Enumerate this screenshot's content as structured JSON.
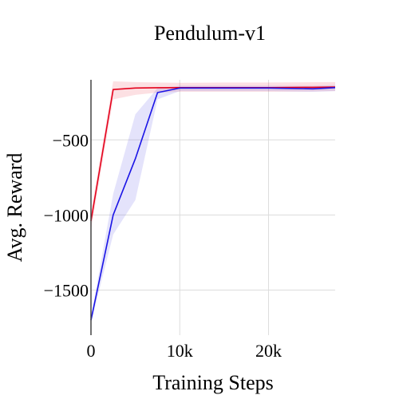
{
  "chart_data": {
    "type": "line",
    "title": "Pendulum-v1",
    "xlabel": "Training Steps",
    "ylabel": "Avg. Reward",
    "xlim": [
      0,
      27500
    ],
    "ylim": [
      -1800,
      -100
    ],
    "x_ticks": [
      0,
      10000,
      20000
    ],
    "x_tick_labels": [
      "0",
      "10k",
      "20k"
    ],
    "y_ticks": [
      -500,
      -1000,
      -1500
    ],
    "y_tick_labels": [
      "−500",
      "−1000",
      "−1500"
    ],
    "grid": true,
    "series": [
      {
        "color": "#e4001b",
        "band_color": "rgba(228,0,27,0.12)",
        "x": [
          0,
          2500,
          5000,
          7500,
          10000,
          15000,
          20000,
          25000,
          27500
        ],
        "y": [
          -1040,
          -165,
          -155,
          -153,
          -152,
          -152,
          -152,
          -150,
          -148
        ],
        "upper": [
          -980,
          -110,
          -115,
          -118,
          -120,
          -118,
          -118,
          -116,
          -115
        ],
        "lower": [
          -1100,
          -230,
          -200,
          -185,
          -180,
          -180,
          -180,
          -178,
          -175
        ]
      },
      {
        "color": "#1a14e6",
        "band_color": "rgba(90,80,230,0.16)",
        "x": [
          0,
          2500,
          5000,
          7500,
          10000,
          15000,
          20000,
          25000,
          27500
        ],
        "y": [
          -1700,
          -1000,
          -625,
          -185,
          -155,
          -155,
          -155,
          -160,
          -152
        ],
        "upper": [
          -1680,
          -860,
          -330,
          -155,
          -140,
          -140,
          -140,
          -140,
          -135
        ],
        "lower": [
          -1720,
          -1130,
          -900,
          -230,
          -175,
          -175,
          -175,
          -180,
          -175
        ]
      }
    ]
  }
}
